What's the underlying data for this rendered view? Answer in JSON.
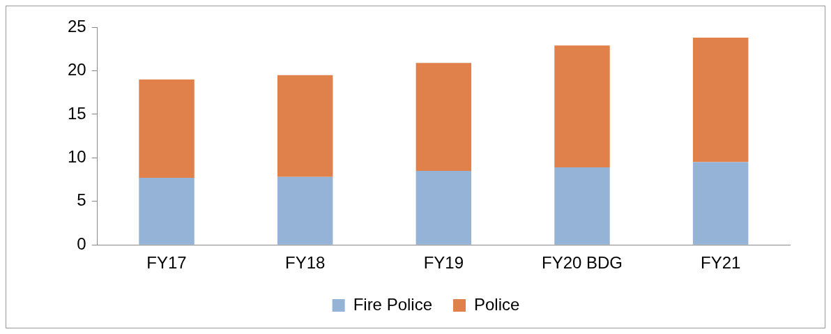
{
  "chart_data": {
    "type": "bar",
    "stacked": true,
    "categories": [
      "FY17",
      "FY18",
      "FY19",
      "FY20 BDG",
      "FY21"
    ],
    "series": [
      {
        "name": "Fire Police",
        "color": "#95b3d7",
        "values": [
          7.7,
          7.8,
          8.5,
          8.9,
          9.5
        ]
      },
      {
        "name": "Police",
        "color": "#e0804a",
        "values": [
          11.3,
          11.7,
          12.4,
          14.0,
          14.3
        ]
      }
    ],
    "ylim": [
      0,
      25
    ],
    "yticks": [
      0,
      5,
      10,
      15,
      20,
      25
    ],
    "grid": false,
    "legend": "bottom"
  }
}
